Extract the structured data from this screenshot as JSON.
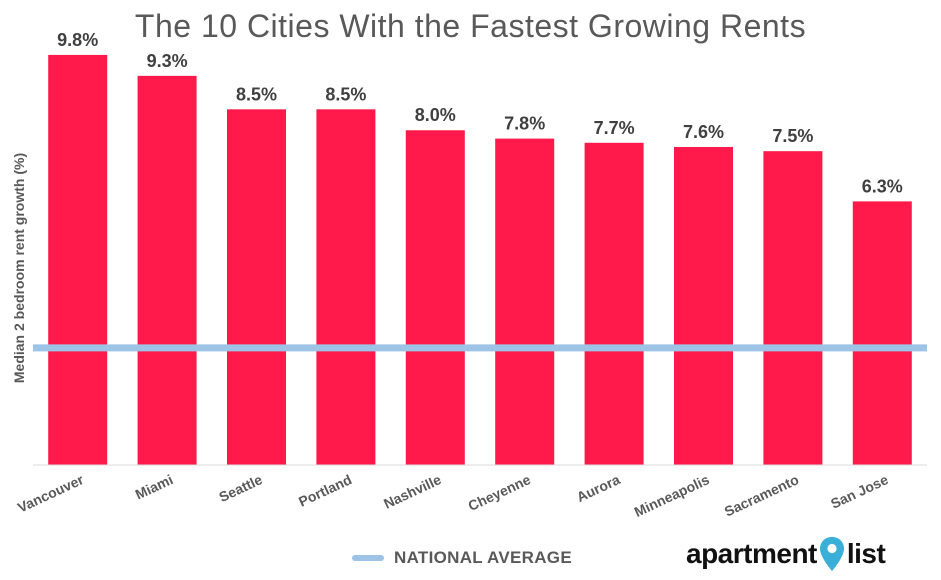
{
  "title": "The 10 Cities With the Fastest Growing Rents",
  "legend": {
    "label": "NATIONAL AVERAGE",
    "swatch_color": "#9dc3e6"
  },
  "logo": {
    "text_left": "apartment",
    "text_right": "list",
    "pin_color": "#3ab0d8"
  },
  "chart_data": {
    "type": "bar",
    "title": "The 10 Cities With the Fastest Growing Rents",
    "xlabel": "",
    "ylabel": "Median 2 bedroom rent growth (%)",
    "categories": [
      "Vancouver",
      "Miami",
      "Seattle",
      "Portland",
      "Nashville",
      "Cheyenne",
      "Aurora",
      "Minneapolis",
      "Sacramento",
      "San Jose"
    ],
    "values": [
      9.8,
      9.3,
      8.5,
      8.5,
      8.0,
      7.8,
      7.7,
      7.6,
      7.5,
      6.3
    ],
    "value_labels": [
      "9.8%",
      "9.3%",
      "8.5%",
      "8.5%",
      "8.0%",
      "7.8%",
      "7.7%",
      "7.6%",
      "7.5%",
      "6.3%"
    ],
    "ylim": [
      0,
      10.3
    ],
    "reference_line": {
      "name": "NATIONAL AVERAGE",
      "value": 2.8
    },
    "bar_color": "#ff1a4b",
    "grid": false
  }
}
